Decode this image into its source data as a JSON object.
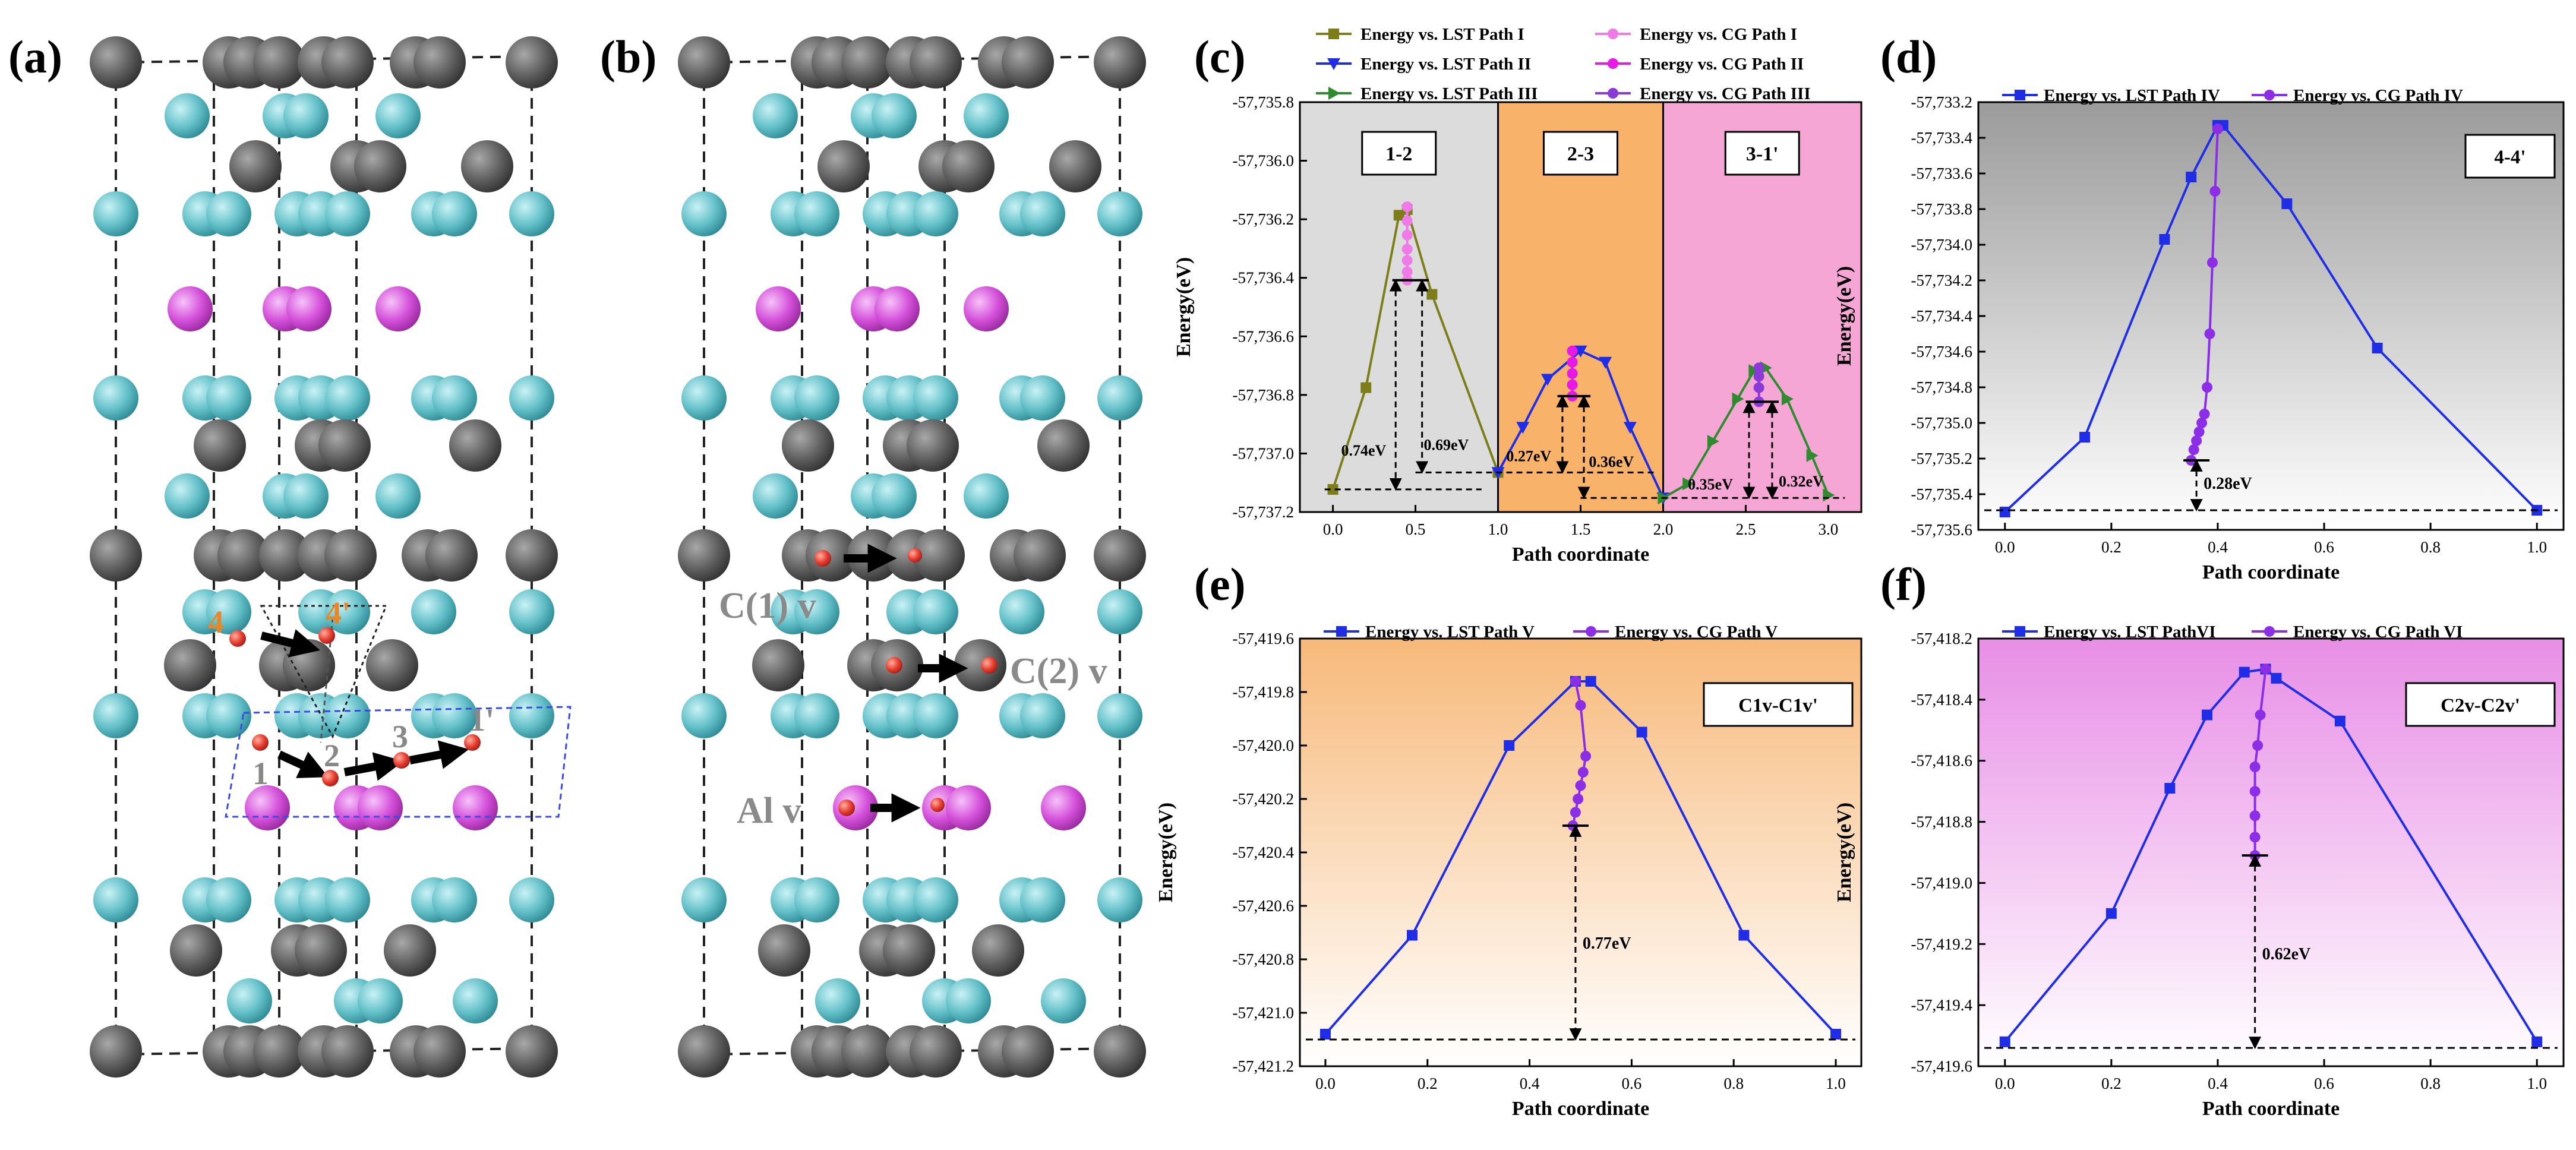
{
  "figure": {
    "panel_labels": {
      "a": "(a)",
      "b": "(b)",
      "c": "(c)",
      "d": "(d)",
      "e": "(e)",
      "f": "(f)"
    },
    "colors": {
      "teal": "#62bfc8",
      "gray": "#5f5f5f",
      "magenta": "#d34fd9",
      "red": "#e63c2e",
      "lst_blue": "#1f2ee6",
      "cg_purple": "#8c2ee6",
      "olive": "#7d7d1a",
      "pink_cg": "#f07ae8",
      "mag_cg": "#e619e6",
      "green": "#2e8b2e",
      "purple_cg3": "#8a3ad6"
    },
    "panel_a": {
      "site_labels": {
        "s4": "4",
        "s4p": "4'",
        "s1": "1",
        "s2": "2",
        "s3": "3",
        "s1p": "1'"
      }
    },
    "panel_b": {
      "vacancy_labels": {
        "c1": "C(1) v",
        "c2": "C(2) v",
        "al": "Al v"
      }
    }
  },
  "chart_data": [
    {
      "id": "c",
      "type": "line",
      "xlabel": "Path coordinate",
      "ylabel": "Energy(eV)",
      "xlim": [
        -0.2,
        3.2
      ],
      "ylim": [
        -57737.25,
        -57735.8
      ],
      "yticks": [
        "-57,735.8",
        "-57,736.0",
        "-57,736.2",
        "-57,736.4",
        "-57,736.6",
        "-57,736.8",
        "-57,737.0",
        "-57,737.2"
      ],
      "xticks": [
        "0.0",
        "0.5",
        "1.0",
        "1.5",
        "2.0",
        "2.5",
        "3.0"
      ],
      "regions": [
        {
          "label": "1-2",
          "x0": -0.2,
          "x1": 1.0,
          "color": "#dcdcdc"
        },
        {
          "label": "2-3",
          "x0": 1.0,
          "x1": 2.0,
          "color": "#f8b26a"
        },
        {
          "label": "3-1'",
          "x0": 2.0,
          "x1": 3.2,
          "color": "#f6a6d5"
        }
      ],
      "legend": [
        "Energy vs. LST Path I",
        "Energy vs. LST Path II",
        "Energy vs. LST Path III",
        "Energy vs. CG Path I",
        "Energy vs. CG Path II",
        "Energy vs. CG Path III"
      ],
      "series": [
        {
          "name": "LST I",
          "color": "#7d7d1a",
          "marker": "square",
          "x": [
            0,
            0.2,
            0.4,
            0.45,
            0.6,
            1.0
          ],
          "y": [
            -57737.17,
            -57736.81,
            -57736.2,
            -57736.18,
            -57736.48,
            -57737.11
          ]
        },
        {
          "name": "CG I",
          "color": "#f07ae8",
          "marker": "circle",
          "x": [
            0.45,
            0.45,
            0.45,
            0.45,
            0.45,
            0.45,
            0.45
          ],
          "y": [
            -57736.17,
            -57736.22,
            -57736.27,
            -57736.32,
            -57736.36,
            -57736.4,
            -57736.43
          ]
        },
        {
          "name": "LST II",
          "color": "#1f2ee6",
          "marker": "tri-down",
          "x": [
            1.0,
            1.15,
            1.3,
            1.5,
            1.65,
            1.8,
            2.0
          ],
          "y": [
            -57737.11,
            -57736.95,
            -57736.78,
            -57736.68,
            -57736.72,
            -57736.95,
            -57737.2
          ]
        },
        {
          "name": "CG II",
          "color": "#e619e6",
          "marker": "circle",
          "x": [
            1.45,
            1.45,
            1.45,
            1.45,
            1.45
          ],
          "y": [
            -57736.68,
            -57736.72,
            -57736.76,
            -57736.8,
            -57736.84
          ]
        },
        {
          "name": "LST III",
          "color": "#2e8b2e",
          "marker": "tri-right",
          "x": [
            2.0,
            2.15,
            2.3,
            2.45,
            2.55,
            2.62,
            2.75,
            2.9,
            3.0
          ],
          "y": [
            -57737.2,
            -57737.15,
            -57737.0,
            -57736.85,
            -57736.75,
            -57736.74,
            -57736.85,
            -57737.05,
            -57737.19
          ]
        },
        {
          "name": "CG III",
          "color": "#8a3ad6",
          "marker": "circle",
          "x": [
            2.58,
            2.58,
            2.58,
            2.58
          ],
          "y": [
            -57736.74,
            -57736.77,
            -57736.81,
            -57736.86
          ]
        }
      ],
      "annotations": [
        "0.74eV",
        "0.69eV",
        "0.27eV",
        "0.36eV",
        "0.35eV",
        "0.32eV"
      ],
      "region_labels": [
        "1-2",
        "2-3",
        "3-1'"
      ]
    },
    {
      "id": "d",
      "type": "line",
      "xlabel": "Path coordinate",
      "ylabel": "Energy(eV)",
      "xlim": [
        -0.05,
        1.05
      ],
      "ylim": [
        -57735.6,
        -57733.2
      ],
      "yticks": [
        "-57,733.2",
        "-57,733.4",
        "-57,733.6",
        "-57,733.8",
        "-57,734.0",
        "-57,734.2",
        "-57,734.4",
        "-57,734.6",
        "-57,734.8",
        "-57,735.0",
        "-57,735.2",
        "-57,735.4",
        "-57,735.6"
      ],
      "xticks": [
        "0.0",
        "0.2",
        "0.4",
        "0.6",
        "0.8",
        "1.0"
      ],
      "legend": [
        "Energy vs. LST Path  IV",
        "Energy vs. CG Path IV"
      ],
      "tag": "4-4'",
      "annotation": "0.28eV",
      "series": [
        {
          "name": "LST IV",
          "color": "#1f2ee6",
          "marker": "square",
          "x": [
            0.0,
            0.15,
            0.3,
            0.35,
            0.4,
            0.41,
            0.53,
            0.7,
            1.0
          ],
          "y": [
            -57735.5,
            -57735.08,
            -57733.97,
            -57733.62,
            -57733.33,
            -57733.33,
            -57733.77,
            -57734.58,
            -57735.49
          ]
        },
        {
          "name": "CG IV",
          "color": "#8c2ee6",
          "marker": "circle",
          "x": [
            0.4,
            0.395,
            0.39,
            0.385,
            0.38,
            0.375,
            0.37,
            0.365,
            0.36,
            0.355,
            0.35
          ],
          "y": [
            -57733.35,
            -57733.7,
            -57734.1,
            -57734.5,
            -57734.8,
            -57734.95,
            -57735.0,
            -57735.05,
            -57735.1,
            -57735.15,
            -57735.21
          ]
        }
      ]
    },
    {
      "id": "e",
      "type": "line",
      "xlabel": "Path coordinate",
      "ylabel": "Energy(eV)",
      "xlim": [
        -0.05,
        1.05
      ],
      "ylim": [
        -57421.2,
        -57419.6
      ],
      "yticks": [
        "-57,419.6",
        "-57,419.8",
        "-57,420.0",
        "-57,420.2",
        "-57,420.4",
        "-57,420.6",
        "-57,420.8",
        "-57,421.0",
        "-57,421.2"
      ],
      "xticks": [
        "0.0",
        "0.2",
        "0.4",
        "0.6",
        "0.8",
        "1.0"
      ],
      "legend": [
        "Energy vs. LST Path V",
        "Energy vs. CG Path V"
      ],
      "tag": "C1v-C1v'",
      "annotation": "0.77eV",
      "series": [
        {
          "name": "LST V",
          "color": "#1f2ee6",
          "marker": "square",
          "x": [
            0.0,
            0.17,
            0.36,
            0.49,
            0.52,
            0.62,
            0.82,
            1.0
          ],
          "y": [
            -57421.08,
            -57420.71,
            -57420.0,
            -57419.76,
            -57419.76,
            -57419.95,
            -57420.71,
            -57421.08
          ]
        },
        {
          "name": "CG V",
          "color": "#8c2ee6",
          "marker": "circle",
          "x": [
            0.49,
            0.5,
            0.51,
            0.505,
            0.5,
            0.495,
            0.49,
            0.485
          ],
          "y": [
            -57419.76,
            -57419.85,
            -57420.04,
            -57420.1,
            -57420.15,
            -57420.2,
            -57420.25,
            -57420.3
          ]
        }
      ]
    },
    {
      "id": "f",
      "type": "line",
      "xlabel": "Path coordinate",
      "ylabel": "Energy(eV)",
      "xlim": [
        -0.05,
        1.05
      ],
      "ylim": [
        -57419.6,
        -57418.2
      ],
      "yticks": [
        "-57,418.2",
        "-57,418.4",
        "-57,418.6",
        "-57,418.8",
        "-57,419.0",
        "-57,419.2",
        "-57,419.4",
        "-57,419.6"
      ],
      "xticks": [
        "0.0",
        "0.2",
        "0.4",
        "0.6",
        "0.8",
        "1.0"
      ],
      "legend": [
        "Energy vs. LST PathVI",
        "Energy vs. CG Path VI"
      ],
      "tag": "C2v-C2v'",
      "annotation": "0.62eV",
      "series": [
        {
          "name": "LST VI",
          "color": "#1f2ee6",
          "marker": "square",
          "x": [
            0.0,
            0.2,
            0.31,
            0.38,
            0.45,
            0.49,
            0.51,
            0.63,
            1.0
          ],
          "y": [
            -57419.52,
            -57419.1,
            -57418.69,
            -57418.45,
            -57418.31,
            -57418.3,
            -57418.33,
            -57418.47,
            -57419.52
          ]
        },
        {
          "name": "CG VI",
          "color": "#8c2ee6",
          "marker": "circle",
          "x": [
            0.49,
            0.48,
            0.475,
            0.47,
            0.47,
            0.47,
            0.47,
            0.47
          ],
          "y": [
            -57418.3,
            -57418.45,
            -57418.55,
            -57418.62,
            -57418.7,
            -57418.78,
            -57418.85,
            -57418.91
          ]
        }
      ]
    }
  ]
}
